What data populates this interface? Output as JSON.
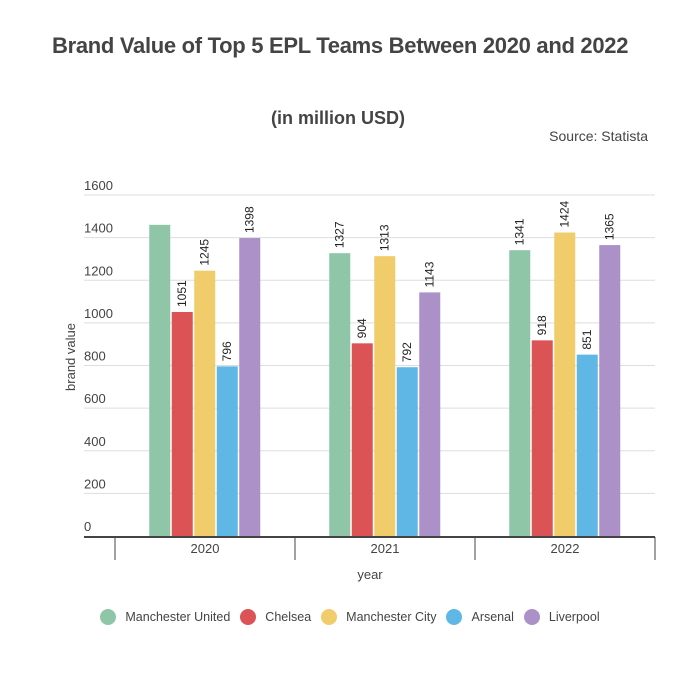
{
  "chart_data": {
    "type": "bar",
    "title": "Brand Value of Top 5 EPL Teams Between 2020 and 2022",
    "subtitle": "(in million USD)",
    "source": "Source: Statista",
    "xlabel": "year",
    "ylabel": "brand value",
    "ylim": [
      0,
      1600
    ],
    "yticks": [
      "0",
      "200",
      "400",
      "600",
      "800",
      "1000",
      "1200",
      "1400",
      "1600"
    ],
    "grid": true,
    "legend_position": "bottom",
    "categories": [
      "2020",
      "2021",
      "2022"
    ],
    "series": [
      {
        "name": "Manchester United",
        "color": "#8fc6a8",
        "values": [
          1460,
          1327,
          1341
        ],
        "labels": [
          "",
          "1327",
          "1341"
        ]
      },
      {
        "name": "Chelsea",
        "color": "#dc5356",
        "values": [
          1051,
          904,
          918
        ],
        "labels": [
          "1051",
          "904",
          "918"
        ]
      },
      {
        "name": "Manchester City",
        "color": "#f0cc6a",
        "values": [
          1245,
          1313,
          1424
        ],
        "labels": [
          "1245",
          "1313",
          "1424"
        ]
      },
      {
        "name": "Arsenal",
        "color": "#5fb7e5",
        "values": [
          796,
          792,
          851
        ],
        "labels": [
          "796",
          "792",
          "851"
        ]
      },
      {
        "name": "Liverpool",
        "color": "#ab91c8",
        "values": [
          1398,
          1143,
          1365
        ],
        "labels": [
          "1398",
          "1143",
          "1365"
        ]
      }
    ]
  }
}
